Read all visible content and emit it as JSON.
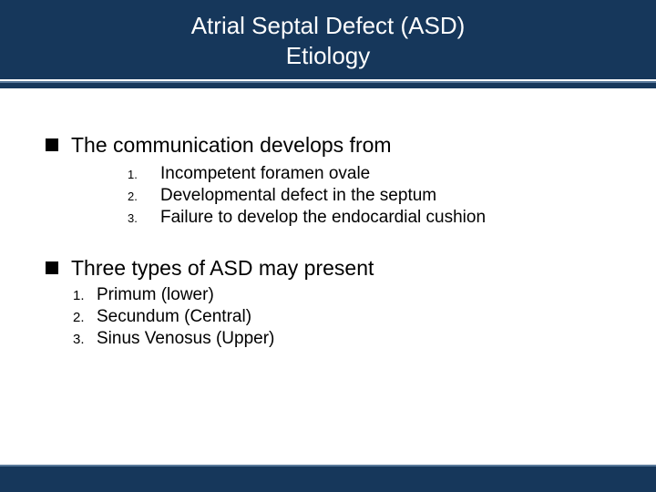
{
  "colors": {
    "header_bg": "#16375b",
    "accent_line": "#5a7a9b",
    "text": "#000000",
    "title_text": "#ffffff",
    "background": "#ffffff"
  },
  "title": {
    "line1": "Atrial Septal Defect (ASD)",
    "line2": "Etiology",
    "fontsize": 26
  },
  "section1": {
    "heading": "The communication develops from",
    "heading_fontsize": 23,
    "items": [
      {
        "num": "1.",
        "text": "Incompetent foramen ovale"
      },
      {
        "num": "2.",
        "text": "Developmental defect in the septum"
      },
      {
        "num": "3.",
        "text": "Failure to develop the endocardial cushion"
      }
    ],
    "item_fontsize": 19,
    "num_fontsize": 13
  },
  "section2": {
    "heading": "Three types of ASD may present",
    "heading_fontsize": 23,
    "items": [
      {
        "num": "1.",
        "text": "Primum (lower)"
      },
      {
        "num": "2.",
        "text": "Secundum (Central)"
      },
      {
        "num": "3.",
        "text": "Sinus Venosus (Upper)"
      }
    ],
    "item_fontsize": 19,
    "num_fontsize": 15
  }
}
